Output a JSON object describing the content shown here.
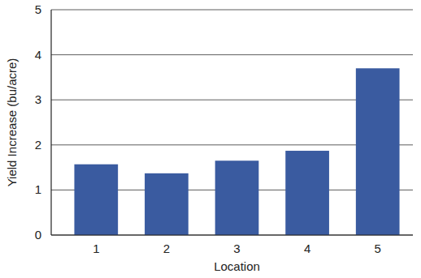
{
  "chart_data": {
    "type": "bar",
    "x_label": "Location",
    "y_label": "Yield Increase (bu/acre)",
    "categories": [
      "1",
      "2",
      "3",
      "4",
      "5"
    ],
    "values": [
      1.57,
      1.37,
      1.65,
      1.87,
      3.7
    ],
    "color": "#3a5ba0",
    "ylim": [
      0,
      5
    ],
    "yticks": [
      0,
      1,
      2,
      3,
      4,
      5
    ],
    "grid": true
  }
}
